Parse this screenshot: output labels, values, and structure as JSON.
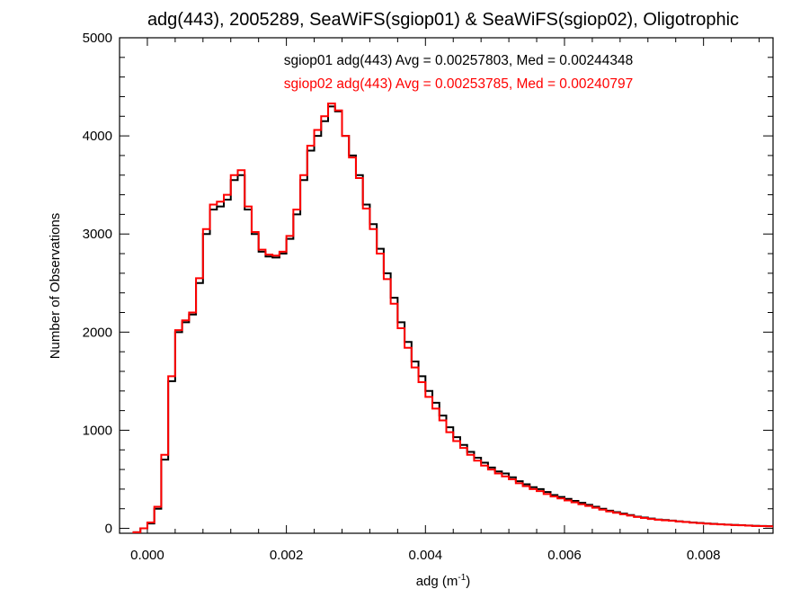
{
  "chart_data": {
    "type": "line",
    "title": "adg(443), 2005289, SeaWiFS(sgiop01) & SeaWiFS(sgiop02), Oligotrophic",
    "xlabel": "adg (m",
    "xlabel_sup": "-1",
    "xlabel_close": ")",
    "ylabel": "Number of Observations",
    "xlim": [
      -0.0004,
      0.009
    ],
    "ylim": [
      -50,
      5000
    ],
    "x_ticks": [
      0.0,
      0.002,
      0.004,
      0.006,
      0.008
    ],
    "x_tick_labels": [
      "0.000",
      "0.002",
      "0.004",
      "0.006",
      "0.008"
    ],
    "y_ticks": [
      0,
      1000,
      2000,
      3000,
      4000,
      5000
    ],
    "y_tick_labels": [
      "0",
      "1000",
      "2000",
      "3000",
      "4000",
      "5000"
    ],
    "legend_position": "top-center",
    "annotations": [
      "sgiop01 adg(443) Avg = 0.00257803, Med = 0.00244348",
      "sgiop02 adg(443) Avg = 0.00253785, Med = 0.00240797"
    ],
    "series": [
      {
        "color": "#000000",
        "x": [
          -0.0004,
          -0.0003,
          -0.0002,
          -0.0001,
          0.0,
          0.0001,
          0.0002,
          0.0003,
          0.0004,
          0.0005,
          0.0006,
          0.0007,
          0.0008,
          0.0009,
          0.001,
          0.0011,
          0.0012,
          0.0013,
          0.0014,
          0.0015,
          0.0016,
          0.0017,
          0.0018,
          0.0019,
          0.002,
          0.0021,
          0.0022,
          0.0023,
          0.0024,
          0.0025,
          0.0026,
          0.0027,
          0.0028,
          0.0029,
          0.003,
          0.0031,
          0.0032,
          0.0033,
          0.0034,
          0.0035,
          0.0036,
          0.0037,
          0.0038,
          0.0039,
          0.004,
          0.0041,
          0.0042,
          0.0043,
          0.0044,
          0.0045,
          0.0046,
          0.0047,
          0.0048,
          0.0049,
          0.005,
          0.0051,
          0.0052,
          0.0053,
          0.0054,
          0.0055,
          0.0056,
          0.0057,
          0.0058,
          0.0059,
          0.006,
          0.0061,
          0.0062,
          0.0063,
          0.0064,
          0.0065,
          0.0066,
          0.0067,
          0.0068,
          0.0069,
          0.007,
          0.0071,
          0.0072,
          0.0073,
          0.0074,
          0.0075,
          0.0076,
          0.0077,
          0.0078,
          0.0079,
          0.008,
          0.0081,
          0.0082,
          0.0083,
          0.0084,
          0.0085,
          0.0086,
          0.0087,
          0.0088,
          0.0089,
          0.009
        ],
        "y": [
          -60,
          -60,
          -40,
          0,
          50,
          200,
          700,
          1500,
          2000,
          2100,
          2180,
          2500,
          3000,
          3250,
          3280,
          3350,
          3550,
          3600,
          3250,
          3000,
          2820,
          2770,
          2760,
          2800,
          2950,
          3200,
          3550,
          3850,
          4000,
          4150,
          4300,
          4250,
          4000,
          3800,
          3600,
          3300,
          3100,
          2850,
          2600,
          2350,
          2100,
          1900,
          1700,
          1550,
          1400,
          1280,
          1150,
          1030,
          930,
          850,
          780,
          720,
          670,
          620,
          580,
          560,
          520,
          480,
          450,
          420,
          400,
          370,
          340,
          320,
          300,
          280,
          260,
          240,
          220,
          200,
          180,
          165,
          150,
          135,
          120,
          110,
          100,
          90,
          85,
          80,
          72,
          66,
          60,
          55,
          50,
          46,
          42,
          38,
          35,
          32,
          29,
          26,
          24,
          22,
          20
        ]
      },
      {
        "color": "#ff0000",
        "x": [
          -0.0004,
          -0.0003,
          -0.0002,
          -0.0001,
          0.0,
          0.0001,
          0.0002,
          0.0003,
          0.0004,
          0.0005,
          0.0006,
          0.0007,
          0.0008,
          0.0009,
          0.001,
          0.0011,
          0.0012,
          0.0013,
          0.0014,
          0.0015,
          0.0016,
          0.0017,
          0.0018,
          0.0019,
          0.002,
          0.0021,
          0.0022,
          0.0023,
          0.0024,
          0.0025,
          0.0026,
          0.0027,
          0.0028,
          0.0029,
          0.003,
          0.0031,
          0.0032,
          0.0033,
          0.0034,
          0.0035,
          0.0036,
          0.0037,
          0.0038,
          0.0039,
          0.004,
          0.0041,
          0.0042,
          0.0043,
          0.0044,
          0.0045,
          0.0046,
          0.0047,
          0.0048,
          0.0049,
          0.005,
          0.0051,
          0.0052,
          0.0053,
          0.0054,
          0.0055,
          0.0056,
          0.0057,
          0.0058,
          0.0059,
          0.006,
          0.0061,
          0.0062,
          0.0063,
          0.0064,
          0.0065,
          0.0066,
          0.0067,
          0.0068,
          0.0069,
          0.007,
          0.0071,
          0.0072,
          0.0073,
          0.0074,
          0.0075,
          0.0076,
          0.0077,
          0.0078,
          0.0079,
          0.008,
          0.0081,
          0.0082,
          0.0083,
          0.0084,
          0.0085,
          0.0086,
          0.0087,
          0.0088,
          0.0089,
          0.009
        ],
        "y": [
          -60,
          -60,
          -40,
          0,
          60,
          220,
          750,
          1550,
          2020,
          2120,
          2200,
          2550,
          3050,
          3300,
          3330,
          3400,
          3600,
          3650,
          3280,
          3020,
          2840,
          2790,
          2780,
          2820,
          2980,
          3250,
          3600,
          3900,
          4060,
          4200,
          4330,
          4260,
          4000,
          3780,
          3570,
          3260,
          3050,
          2800,
          2540,
          2290,
          2040,
          1840,
          1640,
          1490,
          1340,
          1220,
          1100,
          980,
          890,
          820,
          750,
          690,
          640,
          600,
          560,
          530,
          500,
          460,
          430,
          400,
          380,
          350,
          325,
          305,
          285,
          265,
          245,
          228,
          210,
          190,
          172,
          158,
          144,
          130,
          116,
          106,
          96,
          87,
          82,
          77,
          70,
          64,
          58,
          53,
          48,
          44,
          40,
          37,
          34,
          31,
          28,
          25,
          23,
          21,
          19
        ]
      }
    ]
  }
}
